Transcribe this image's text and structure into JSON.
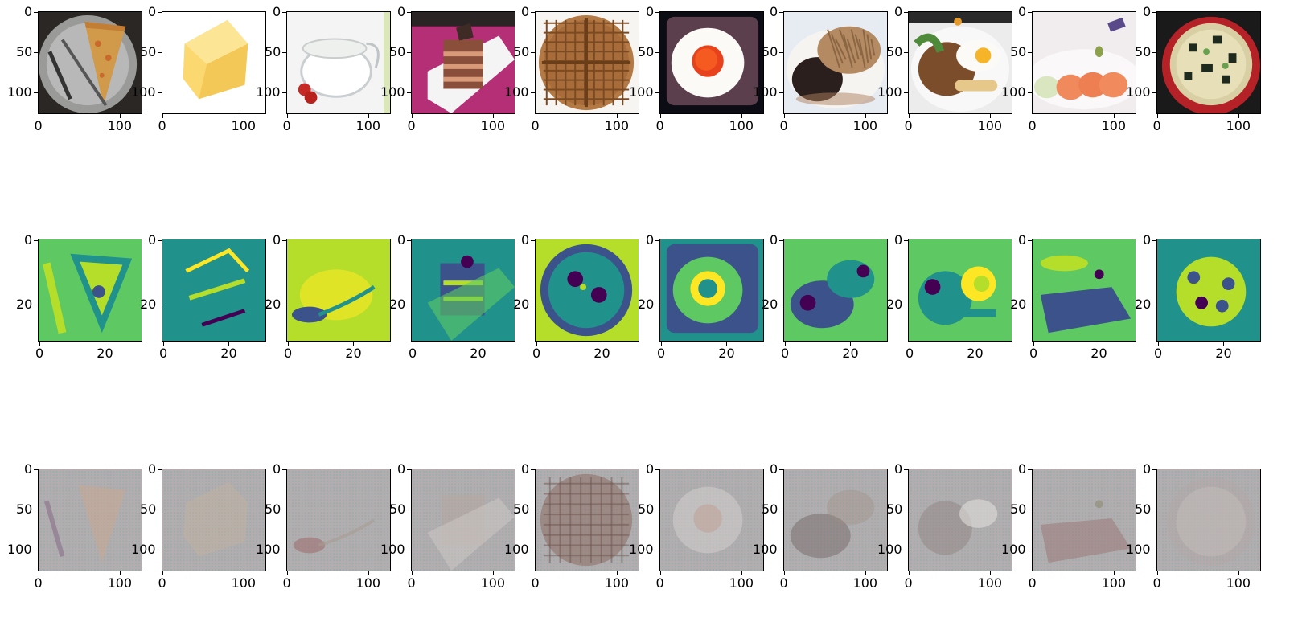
{
  "figure": {
    "rows": [
      {
        "name": "original-image",
        "y_ticks": [
          "0",
          "50",
          "100"
        ],
        "x_ticks": [
          "0",
          "100"
        ],
        "panels": [
          {
            "content": "pizza slice with fork on plate"
          },
          {
            "content": "block of butter"
          },
          {
            "content": "milk pitcher with strawberries"
          },
          {
            "content": "layered chocolate cake"
          },
          {
            "content": "waffle"
          },
          {
            "content": "fried egg on toast"
          },
          {
            "content": "steak with onions"
          },
          {
            "content": "noodles with fried egg"
          },
          {
            "content": "salmon sashimi"
          },
          {
            "content": "miso soup"
          }
        ]
      },
      {
        "name": "feature-map",
        "y_ticks": [
          "0",
          "20"
        ],
        "x_ticks": [
          "0",
          "20"
        ],
        "panels": [
          {
            "content": "feature map 1"
          },
          {
            "content": "feature map 2"
          },
          {
            "content": "feature map 3"
          },
          {
            "content": "feature map 4"
          },
          {
            "content": "feature map 5"
          },
          {
            "content": "feature map 6"
          },
          {
            "content": "feature map 7"
          },
          {
            "content": "feature map 8"
          },
          {
            "content": "feature map 9"
          },
          {
            "content": "feature map 10"
          }
        ]
      },
      {
        "name": "reconstruction",
        "y_ticks": [
          "0",
          "50",
          "100"
        ],
        "x_ticks": [
          "0",
          "100"
        ],
        "panels": [
          {
            "content": "reconstruction 1"
          },
          {
            "content": "reconstruction 2"
          },
          {
            "content": "reconstruction 3"
          },
          {
            "content": "reconstruction 4"
          },
          {
            "content": "reconstruction 5"
          },
          {
            "content": "reconstruction 6"
          },
          {
            "content": "reconstruction 7"
          },
          {
            "content": "reconstruction 8"
          },
          {
            "content": "reconstruction 9"
          },
          {
            "content": "reconstruction 10"
          }
        ]
      }
    ]
  }
}
